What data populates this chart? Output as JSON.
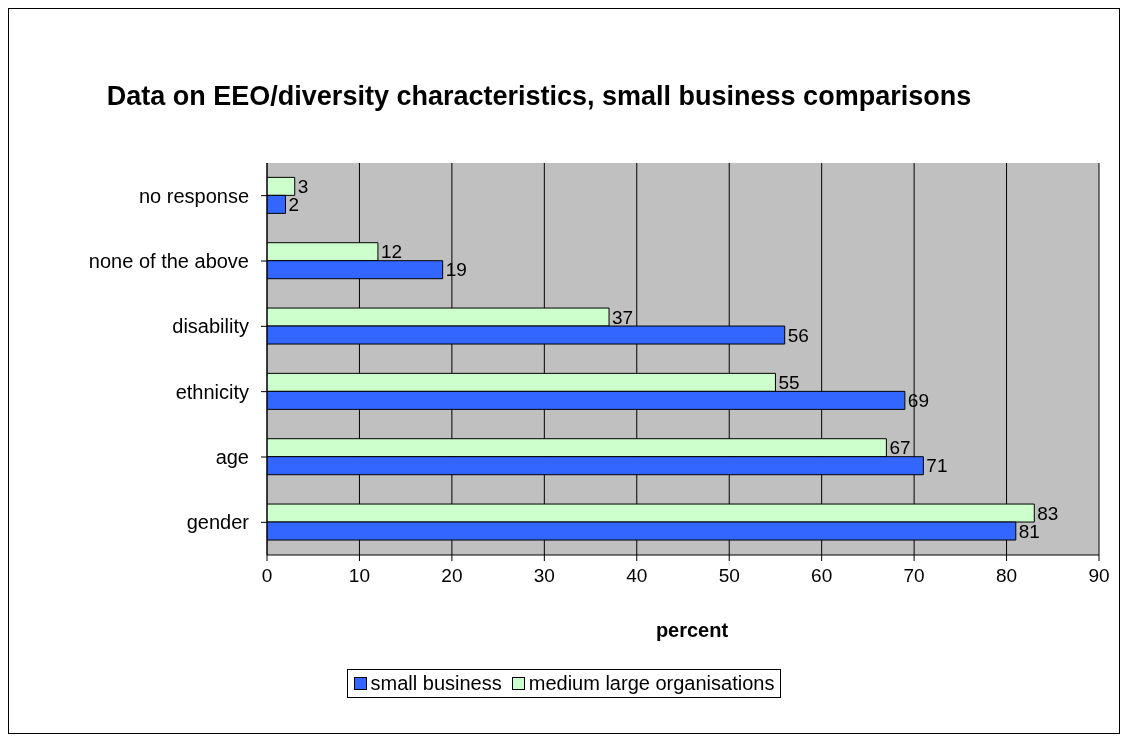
{
  "chart_data": {
    "type": "bar",
    "orientation": "horizontal",
    "title": "Data on EEO/diversity characteristics, small business comparisons",
    "xlabel": "percent",
    "categories": [
      "no response",
      "none of the above",
      "disability",
      "ethnicity",
      "age",
      "gender"
    ],
    "series": [
      {
        "name": "small business",
        "color": "#3366ff",
        "values": [
          2,
          19,
          56,
          69,
          71,
          81
        ]
      },
      {
        "name": "medium large organisations",
        "color": "#ccffcc",
        "values": [
          3,
          12,
          37,
          55,
          67,
          83
        ]
      }
    ],
    "xlim": [
      0,
      90
    ],
    "xticks": [
      0,
      10,
      20,
      30,
      40,
      50,
      60,
      70,
      80,
      90
    ],
    "grid": "x",
    "legend": "bottom",
    "data_labels": true
  }
}
